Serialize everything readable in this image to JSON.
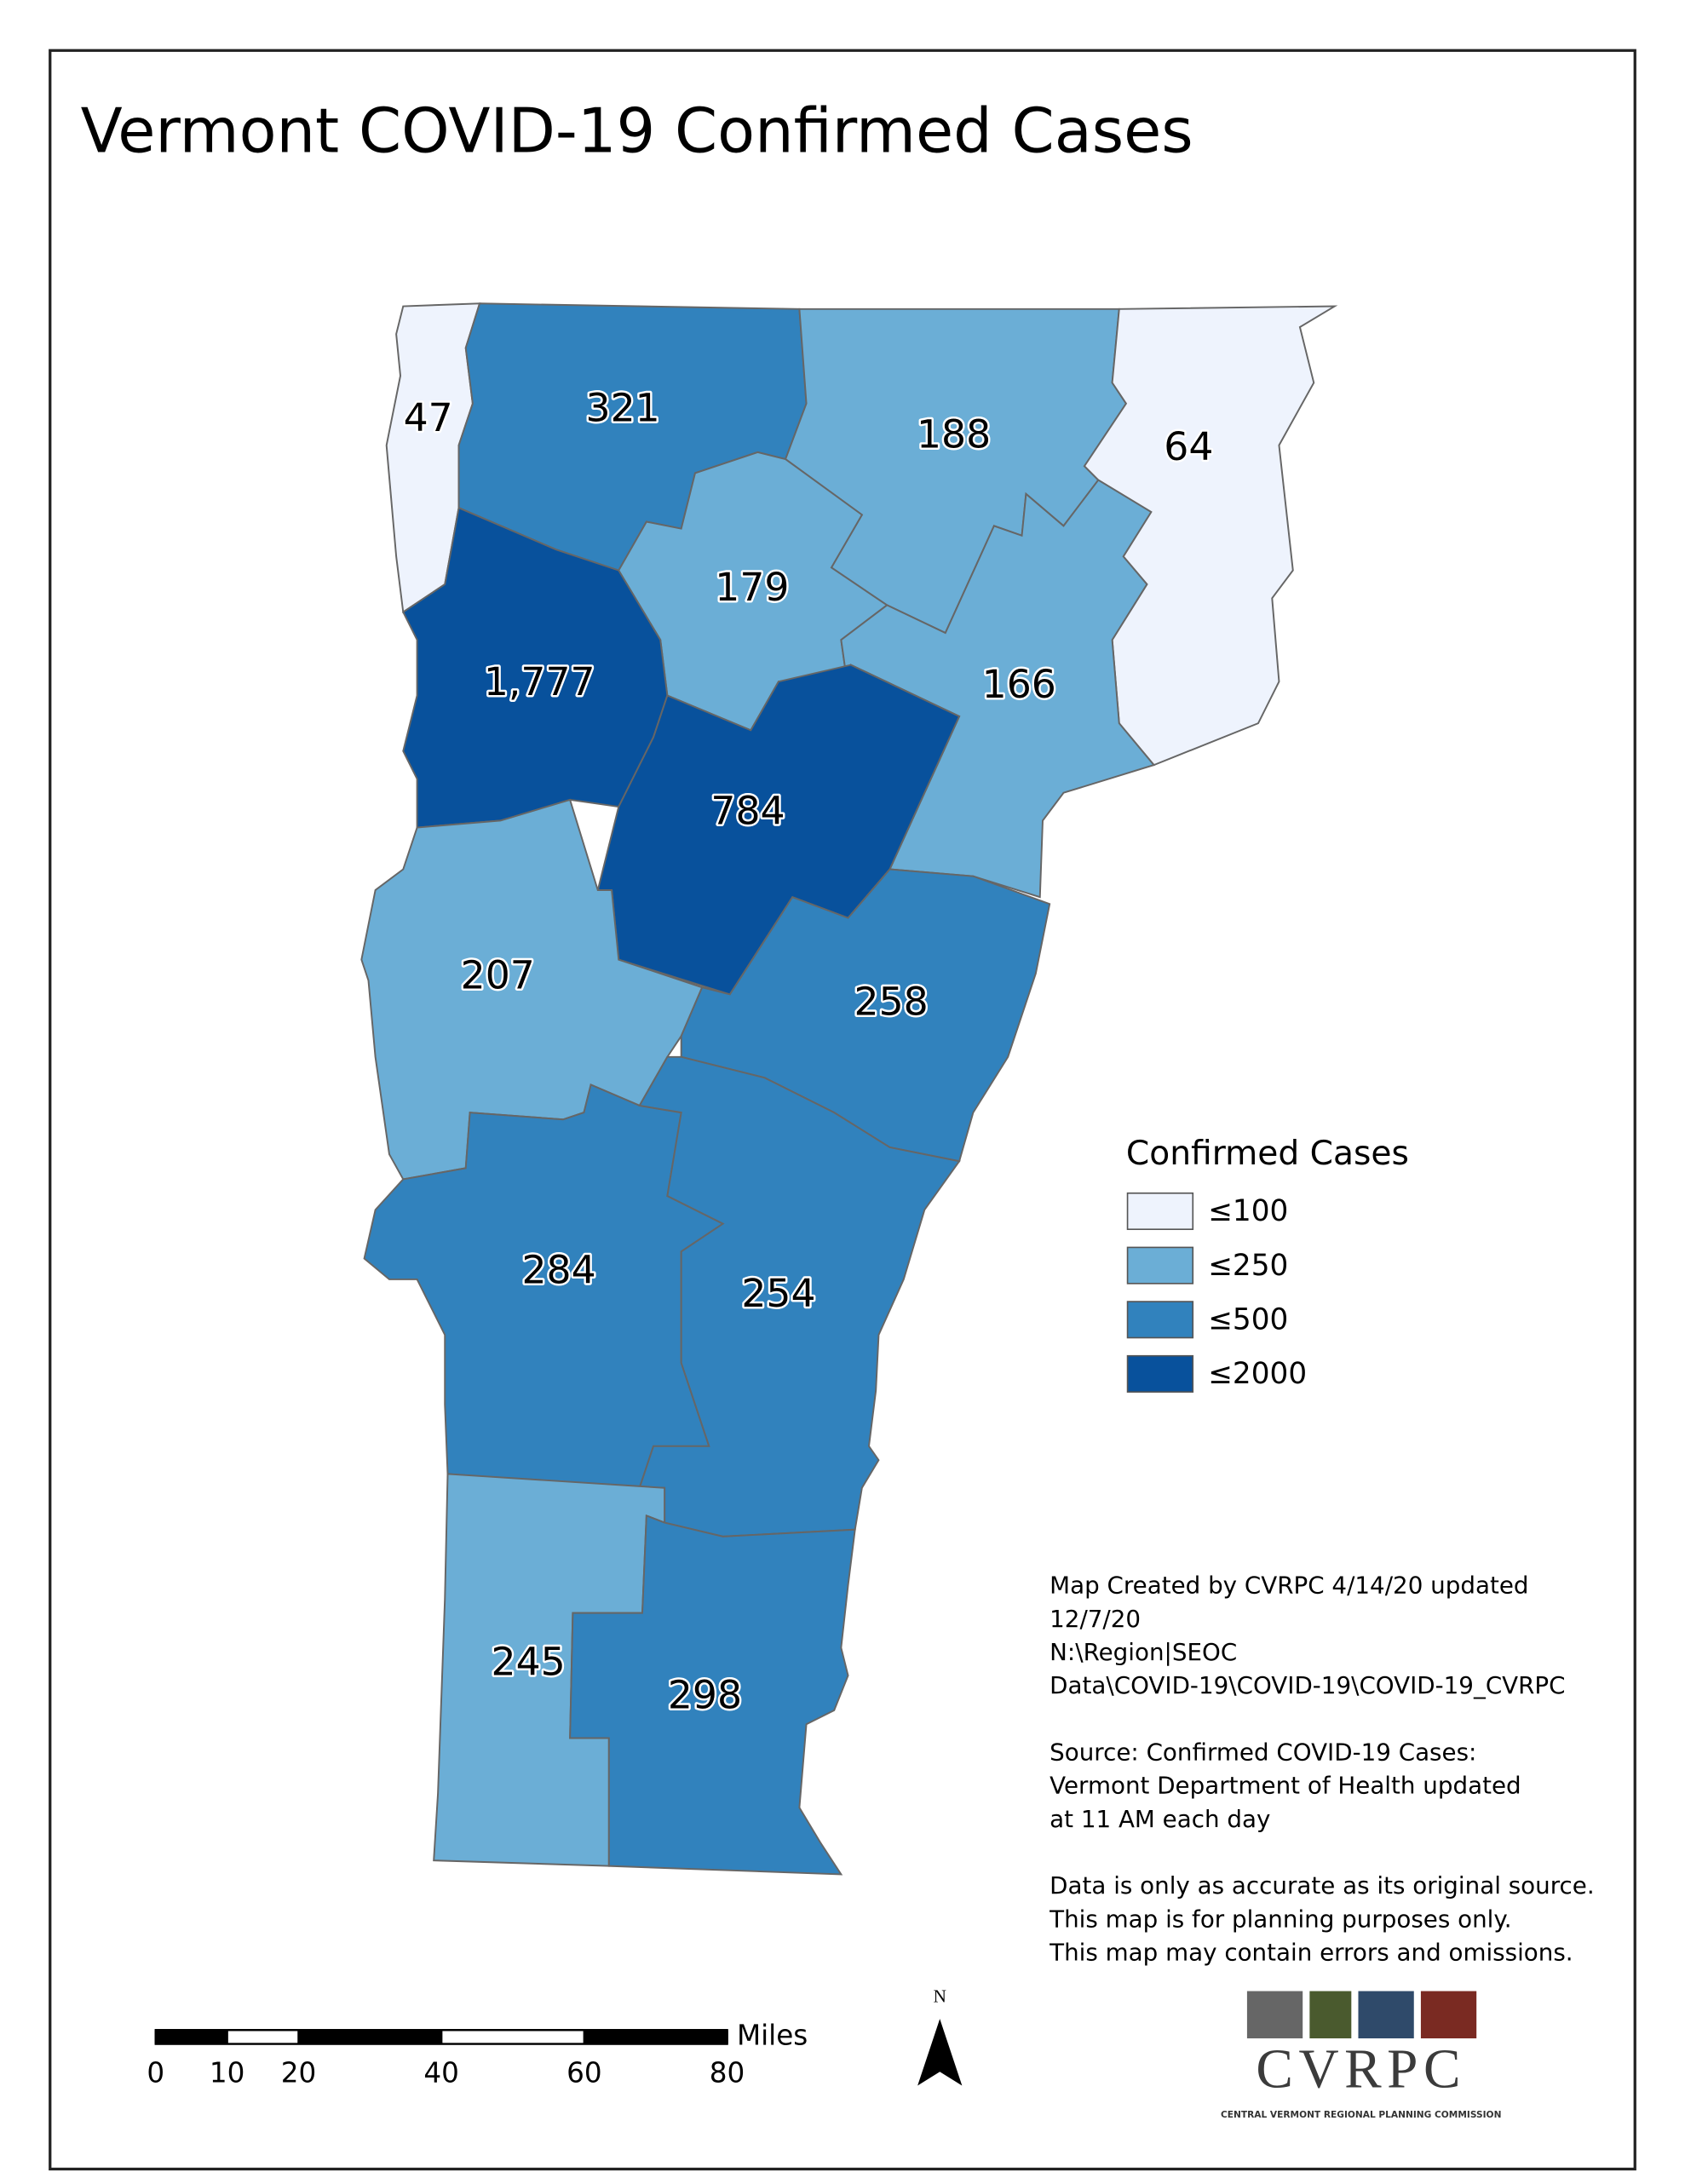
{
  "title": "Vermont COVID-19 Confirmed Cases",
  "map": {
    "regions": [
      {
        "value": 47
      },
      {
        "value": 321
      },
      {
        "value": 188
      },
      {
        "value": 64
      },
      {
        "value": 179
      },
      {
        "value": 166
      },
      {
        "value": 1777,
        "label": "1,777"
      },
      {
        "value": 784
      },
      {
        "value": 207
      },
      {
        "value": 258
      },
      {
        "value": 284
      },
      {
        "value": 254
      },
      {
        "value": 245
      },
      {
        "value": 298
      }
    ],
    "legend": {
      "title": "Confirmed Cases",
      "classes": [
        {
          "value": 100,
          "label": "≤100",
          "color": "#eef3fd"
        },
        {
          "value": 250,
          "label": "≤250",
          "color": "#6baed6"
        },
        {
          "value": 500,
          "label": "≤500",
          "color": "#3182bd"
        },
        {
          "value": 2000,
          "label": "≤2000",
          "color": "#08519c"
        }
      ]
    }
  },
  "notes": [
    [
      "Map Created by CVRPC 4/14/20 updated",
      "12/7/20",
      "N:\\Region|SEOC",
      "Data\\COVID-19\\COVID-19\\COVID-19_CVRPC"
    ],
    [
      "Source: Confirmed COVID-19 Cases:",
      "Vermont Department of Health updated",
      "at 11 AM each day"
    ],
    [
      "Data is only as accurate as its original source.",
      "This map is for planning purposes only.",
      "This map may contain errors and omissions."
    ]
  ],
  "scale_bar": {
    "ticks": [
      0,
      10,
      20,
      40,
      60,
      80
    ],
    "unit": "Miles"
  },
  "north_arrow": "N",
  "logo": {
    "name": "CVRPC",
    "subtitle": "CENTRAL VERMONT REGIONAL PLANNING COMMISSION"
  }
}
